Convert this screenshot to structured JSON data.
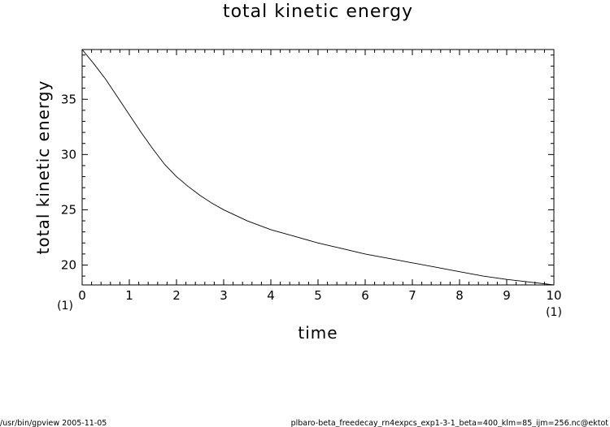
{
  "footer": {
    "left": "/usr/bin/gpview   2005-11-05",
    "right": "plbaro-beta_freedecay_rn4expcs_exp1-3-1_beta=400_klm=85_ijm=256.nc@ektot"
  },
  "chart_data": {
    "type": "line",
    "title": "total kinetic energy",
    "xlabel": "time",
    "ylabel": "total kinetic energy",
    "x_unit_left": "(1)",
    "x_unit_right": "(1)",
    "xlim": [
      0,
      10
    ],
    "ylim": [
      18.2,
      39.5
    ],
    "xticks": [
      0,
      1,
      2,
      3,
      4,
      5,
      6,
      7,
      8,
      9,
      10
    ],
    "yticks": [
      20,
      25,
      30,
      35
    ],
    "grid": false,
    "series": [
      {
        "x": [
          0,
          0.25,
          0.5,
          0.75,
          1.0,
          1.25,
          1.5,
          1.75,
          2.0,
          2.25,
          2.5,
          2.75,
          3.0,
          3.5,
          4.0,
          4.5,
          5.0,
          5.5,
          6.0,
          6.5,
          7.0,
          7.5,
          8.0,
          8.5,
          9.0,
          9.5,
          10.0
        ],
        "y": [
          39.5,
          38.2,
          36.8,
          35.2,
          33.6,
          32.0,
          30.5,
          29.1,
          28.0,
          27.1,
          26.3,
          25.6,
          25.0,
          24.0,
          23.2,
          22.6,
          22.0,
          21.5,
          21.0,
          20.6,
          20.2,
          19.8,
          19.4,
          19.0,
          18.7,
          18.45,
          18.2
        ]
      }
    ]
  }
}
